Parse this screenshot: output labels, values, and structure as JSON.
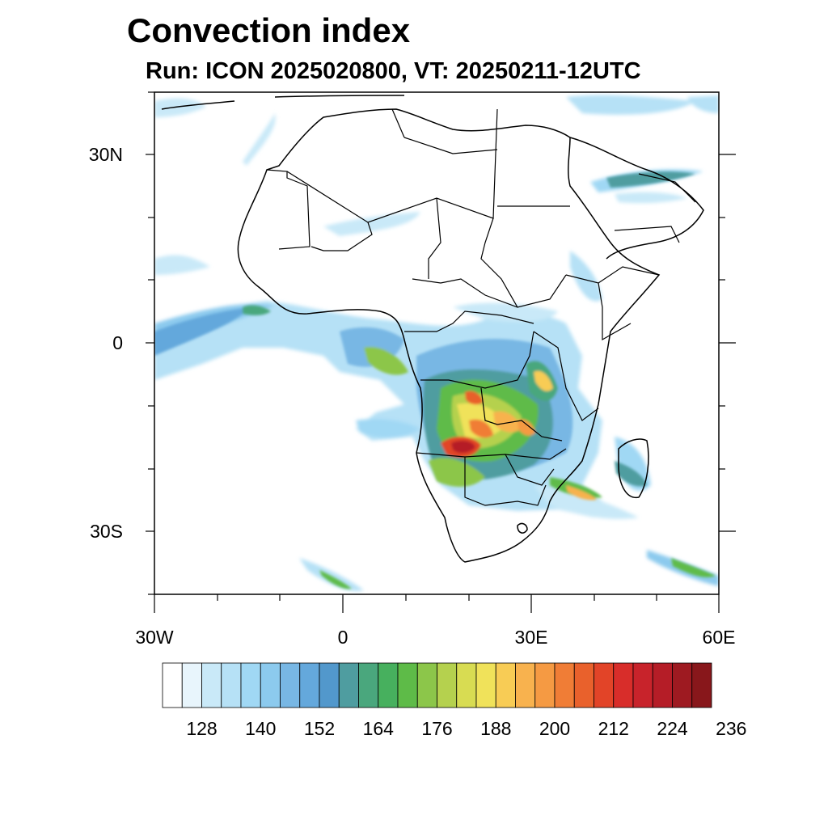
{
  "title": "Convection index",
  "subtitle": "Run: ICON 2025020800,  VT: 20250211-12UTC",
  "map": {
    "projection": "cylindrical-equidistant",
    "lon_range": [
      -30,
      60
    ],
    "lat_range": [
      -40,
      40
    ],
    "lat_tick_labels": [
      "30N",
      "0",
      "30S"
    ],
    "lon_tick_labels": [
      "30W",
      "0",
      "30E",
      "60E"
    ],
    "coastline_color": "#000000",
    "field_name": "Convection index"
  },
  "colorbar": {
    "labels": [
      "128",
      "140",
      "152",
      "164",
      "176",
      "188",
      "200",
      "212",
      "224",
      "236"
    ],
    "colors": [
      "#ffffff",
      "#e8f5fc",
      "#c9e9f8",
      "#b6e1f6",
      "#a0d8f4",
      "#8ccaee",
      "#78b7e4",
      "#64a8dc",
      "#5298cc",
      "#4f9da0",
      "#4aa77d",
      "#47b05e",
      "#5ebb48",
      "#8cc64a",
      "#b5d14e",
      "#d8dc52",
      "#f0e25a",
      "#f8cc55",
      "#f8b24e",
      "#f59a43",
      "#f07d36",
      "#e9612c",
      "#e24428",
      "#d82d2a",
      "#c8232b",
      "#b51d27",
      "#9e1a21",
      "#88171b"
    ]
  }
}
